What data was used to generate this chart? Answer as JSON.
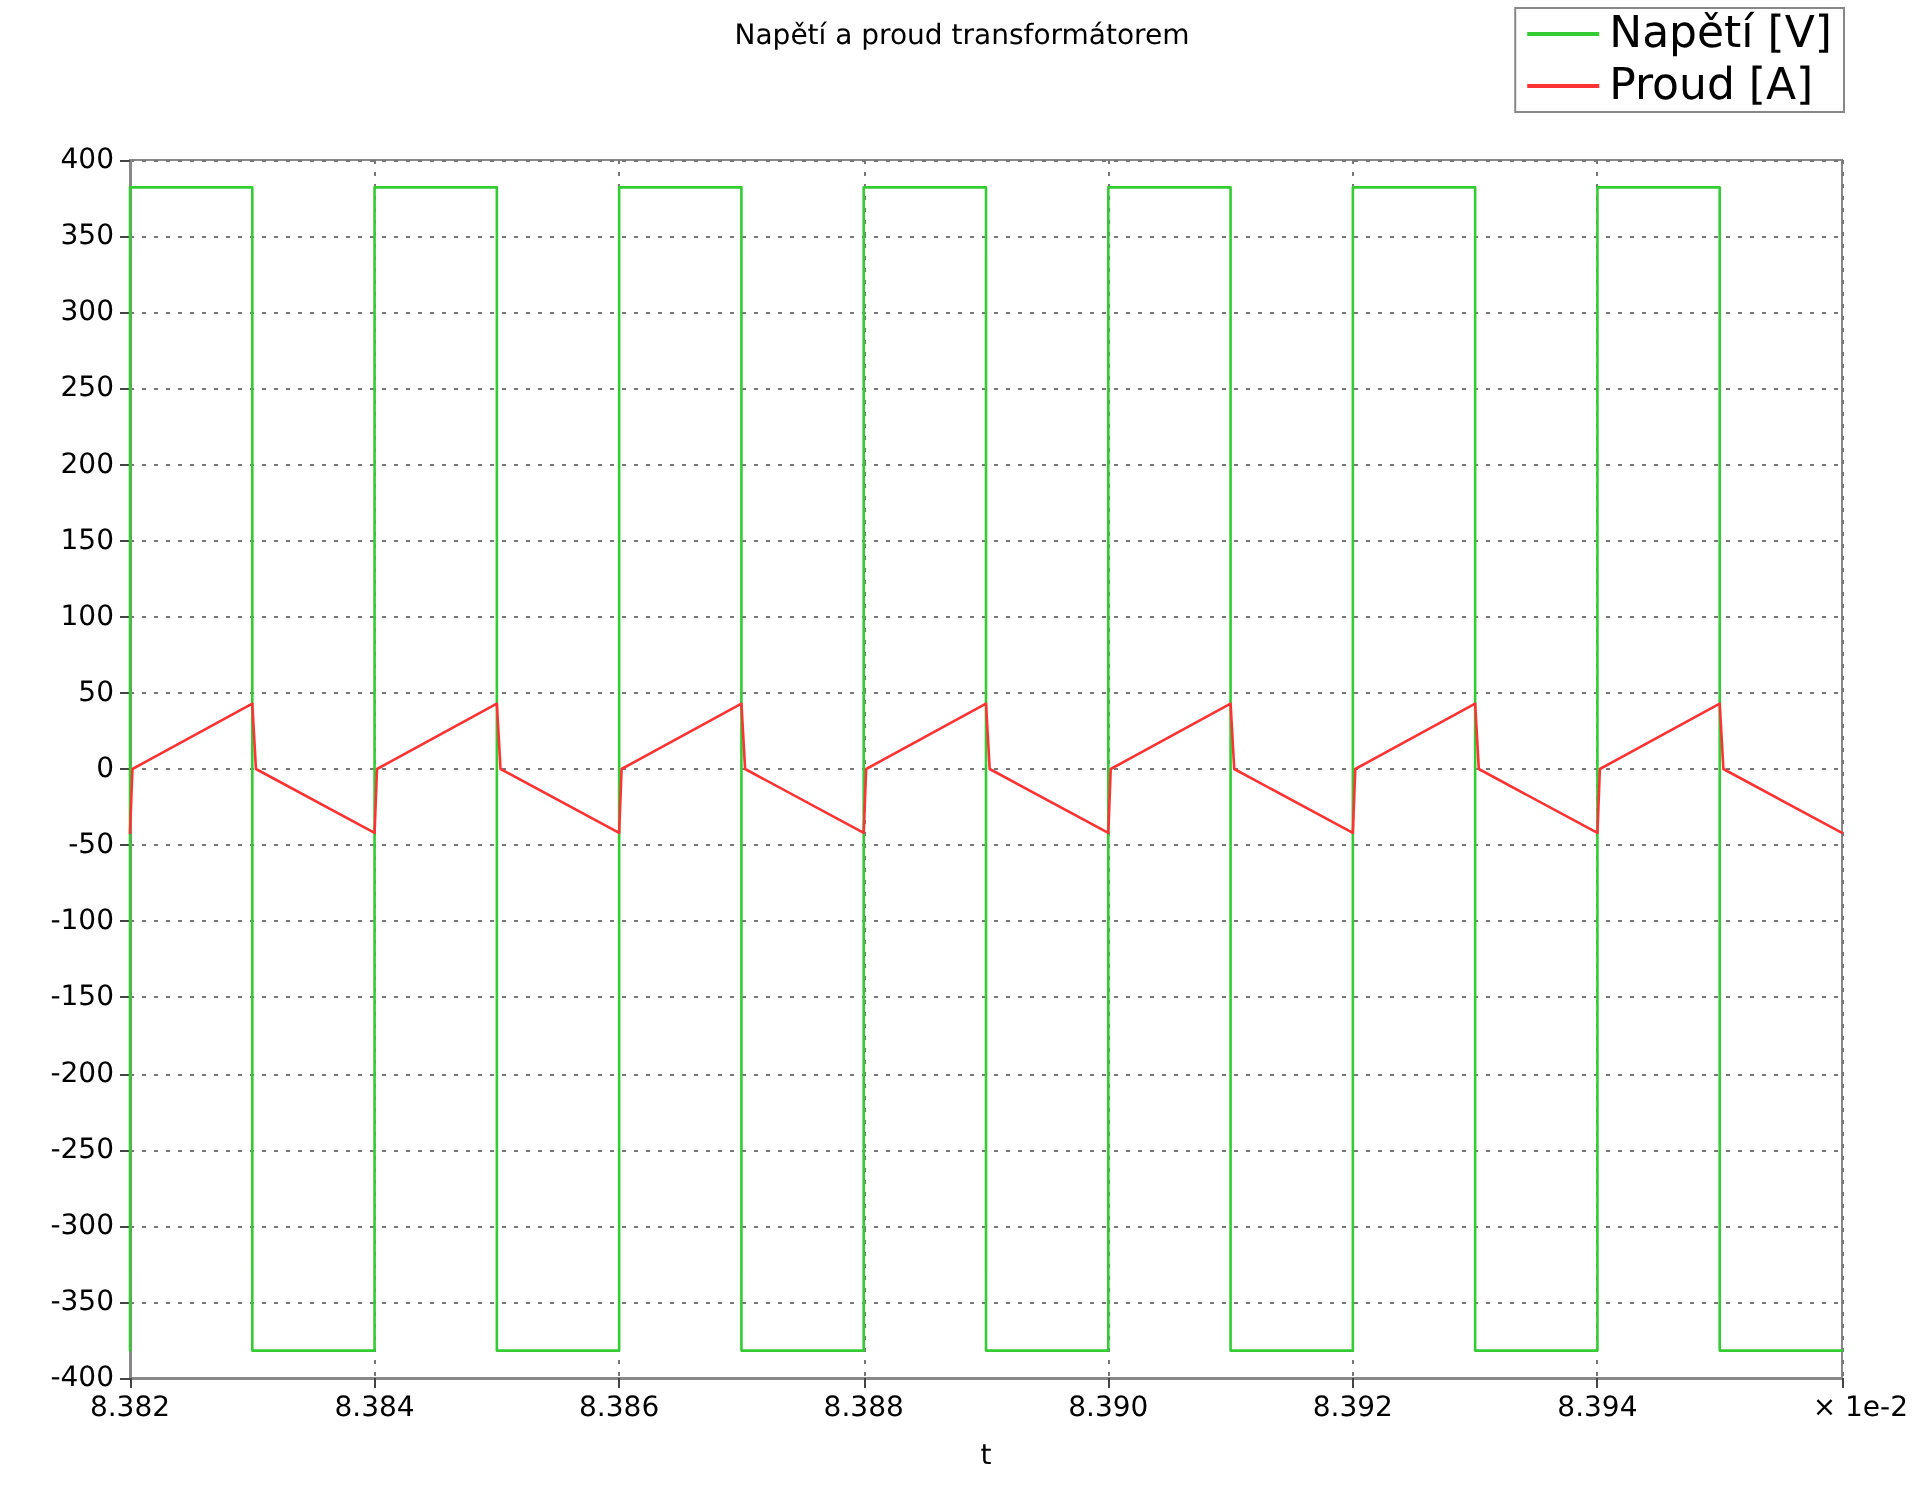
{
  "chart_data": {
    "type": "line",
    "title": "Napětí a proud transformátorem",
    "xlabel": "t",
    "annotations": [
      "× 1e-2"
    ],
    "series": [
      {
        "name": "Napětí [V]",
        "type": "step",
        "color": "#33cc33",
        "x": [
          8.382,
          8.382,
          8.383,
          8.384,
          8.385,
          8.386,
          8.387,
          8.388,
          8.389,
          8.39,
          8.391,
          8.392,
          8.393,
          8.394,
          8.395,
          8.396
        ],
        "values": [
          -382,
          382,
          -382,
          382,
          -382,
          382,
          -382,
          382,
          -382,
          382,
          -382,
          382,
          -382,
          382,
          -382,
          -382
        ]
      },
      {
        "name": "Proud [A]",
        "type": "line",
        "color": "#ff3333",
        "x": [
          8.382,
          8.38202,
          8.383,
          8.38303,
          8.384,
          8.38402,
          8.385,
          8.38503,
          8.386,
          8.38602,
          8.387,
          8.38703,
          8.388,
          8.38802,
          8.389,
          8.38903,
          8.39,
          8.39002,
          8.391,
          8.39103,
          8.392,
          8.39202,
          8.393,
          8.39303,
          8.394,
          8.39402,
          8.395,
          8.39503,
          8.396
        ],
        "values": [
          -42,
          0,
          43,
          0,
          -42,
          0,
          43,
          0,
          -42,
          0,
          43,
          0,
          -42,
          0,
          43,
          0,
          -42,
          0,
          43,
          0,
          -42,
          0,
          43,
          0,
          -42,
          0,
          43,
          0,
          -42
        ]
      }
    ],
    "xlim": [
      8.382,
      8.396
    ],
    "xticks": [
      8.382,
      8.384,
      8.386,
      8.388,
      {
        "value": 8.39,
        "label": "8.390"
      },
      8.392,
      8.394,
      {
        "value": 8.396,
        "label": null
      }
    ],
    "ylim": [
      -400,
      400
    ],
    "yticks": [
      -400,
      -350,
      -300,
      -250,
      -200,
      -150,
      -100,
      -50,
      0,
      50,
      100,
      150,
      200,
      250,
      300,
      350,
      400
    ],
    "grid": true,
    "legend": "top right",
    "marker": "none",
    "line_style": "solid"
  }
}
